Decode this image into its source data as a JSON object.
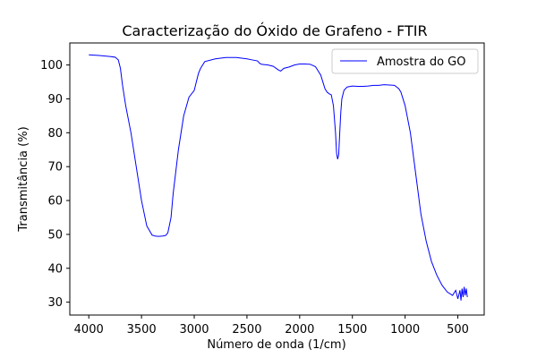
{
  "chart_data": {
    "type": "line",
    "title": "Caracterização do Óxido de Grafeno - FTIR",
    "xlabel": "Número de onda (1/cm)",
    "ylabel": "Transmitância (%)",
    "x_reversed": true,
    "xlim": [
      4180,
      250
    ],
    "ylim": [
      26.2,
      106.5
    ],
    "x_ticks": [
      4000,
      3500,
      3000,
      2500,
      2000,
      1500,
      1000,
      500
    ],
    "y_ticks": [
      30,
      40,
      50,
      60,
      70,
      80,
      90,
      100
    ],
    "grid": false,
    "legend_position": "top-right",
    "series": [
      {
        "name": "Amostra do GO",
        "color": "#0000ff",
        "x": [
          4000,
          3900,
          3800,
          3750,
          3720,
          3700,
          3680,
          3650,
          3600,
          3550,
          3500,
          3450,
          3400,
          3370,
          3340,
          3300,
          3270,
          3250,
          3220,
          3200,
          3150,
          3100,
          3050,
          3000,
          2980,
          2960,
          2940,
          2900,
          2800,
          2700,
          2600,
          2500,
          2450,
          2400,
          2380,
          2360,
          2300,
          2250,
          2200,
          2180,
          2150,
          2100,
          2050,
          2000,
          1950,
          1900,
          1850,
          1800,
          1780,
          1760,
          1740,
          1720,
          1700,
          1680,
          1660,
          1650,
          1640,
          1630,
          1620,
          1610,
          1600,
          1580,
          1550,
          1500,
          1450,
          1400,
          1350,
          1300,
          1250,
          1200,
          1150,
          1100,
          1080,
          1060,
          1040,
          1000,
          950,
          900,
          850,
          800,
          750,
          700,
          650,
          600,
          550,
          520,
          500,
          480,
          470,
          460,
          450,
          440,
          430,
          420,
          410
        ],
        "y": [
          103,
          102.8,
          102.5,
          102.3,
          101.5,
          99,
          94,
          88,
          80,
          70,
          60,
          52.5,
          49.8,
          49.5,
          49.4,
          49.5,
          49.7,
          50.5,
          55,
          62,
          75,
          85,
          90.5,
          92.5,
          95,
          97.5,
          99,
          101,
          101.8,
          102.2,
          102.2,
          101.8,
          101.5,
          101.2,
          100.5,
          100.2,
          100,
          99.6,
          98.5,
          98.2,
          99,
          99.4,
          100,
          100.3,
          100.3,
          100.2,
          99.5,
          97,
          95,
          93,
          92,
          91.5,
          91.2,
          88,
          80,
          74,
          72.2,
          73.5,
          80,
          86,
          90,
          92.5,
          93.5,
          93.8,
          93.7,
          93.7,
          93.8,
          94,
          94,
          94.2,
          94.1,
          94,
          93.5,
          93,
          92,
          88,
          80,
          68,
          56,
          48,
          42,
          38,
          35,
          33,
          32,
          33.5,
          31,
          33.5,
          30.5,
          34,
          31.5,
          34.5,
          32,
          34,
          31.5
        ]
      }
    ]
  }
}
